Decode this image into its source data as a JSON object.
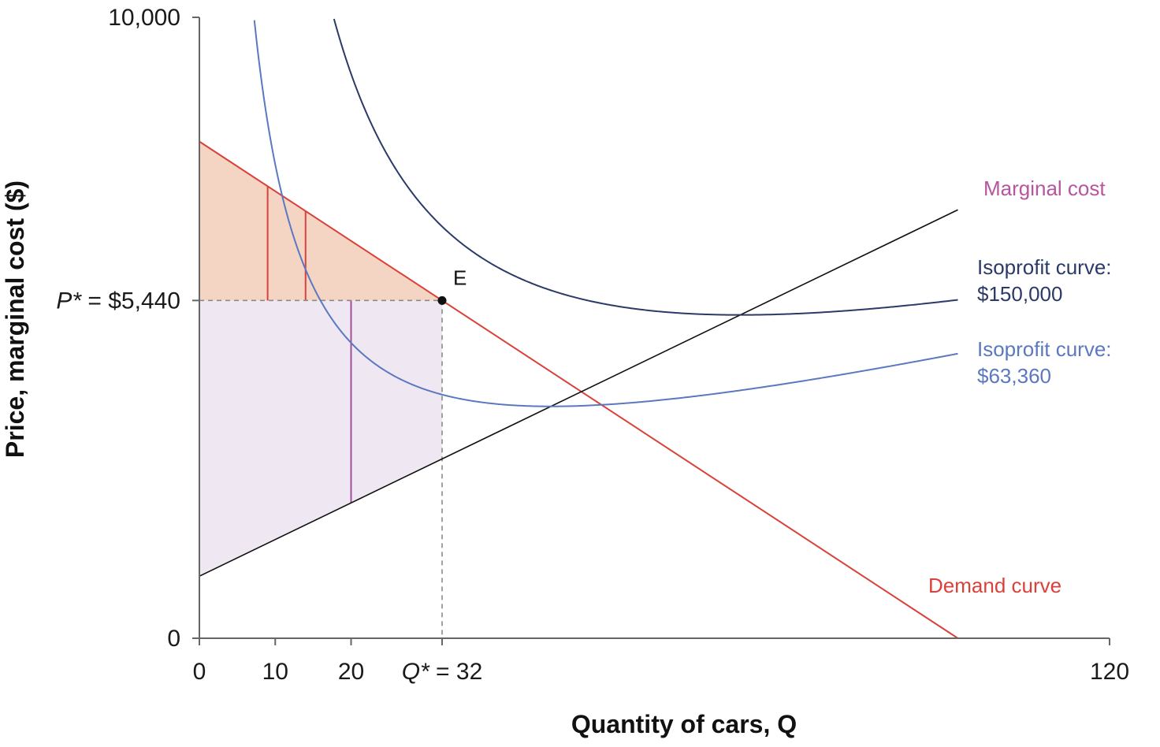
{
  "chart_data": {
    "type": "line",
    "title": "",
    "xlabel": "Quantity of cars, Q",
    "ylabel": "Price, marginal cost ($)",
    "xlim": [
      0,
      120
    ],
    "ylim": [
      0,
      10000
    ],
    "x_ticks": [
      {
        "value": 0,
        "label": "0"
      },
      {
        "value": 10,
        "label": "10"
      },
      {
        "value": 20,
        "label": "20"
      },
      {
        "value": 32,
        "label_prefix": "Q*",
        "label_suffix": " = 32"
      },
      {
        "value": 120,
        "label": "120"
      }
    ],
    "y_ticks": [
      {
        "value": 0,
        "label": "0"
      },
      {
        "value": 5440,
        "label_prefix": "P*",
        "label_suffix": " = $5,440"
      },
      {
        "value": 10000,
        "label": "10,000"
      }
    ],
    "series": [
      {
        "name": "Demand curve",
        "color": "#d9413a",
        "x": [
          0,
          100
        ],
        "y": [
          8000,
          0
        ]
      },
      {
        "name": "Marginal cost",
        "color": "#b5569e",
        "line_color": "#111111",
        "x": [
          0,
          100
        ],
        "y": [
          1000,
          6900
        ]
      },
      {
        "name": "Isoprofit curve: $150,000",
        "label_lines": [
          "Isoprofit curve:",
          "$150,000"
        ],
        "color": "#2b3a67",
        "profit": 150000
      },
      {
        "name": "Isoprofit curve: $63,360",
        "label_lines": [
          "Isoprofit curve:",
          "$63,360"
        ],
        "color": "#5b78c0",
        "profit": 63360
      }
    ],
    "equilibrium": {
      "label": "E",
      "x": 32,
      "y": 5440
    },
    "shaded_regions": [
      {
        "name": "consumer-surplus",
        "color": "#f4d4c3"
      },
      {
        "name": "producer-surplus",
        "color": "#efe7f1"
      }
    ],
    "surplus_bars": [
      {
        "x": 9,
        "region": "consumer-surplus",
        "color": "#d9413a"
      },
      {
        "x": 14,
        "region": "consumer-surplus",
        "color": "#d9413a"
      },
      {
        "x": 20,
        "region": "producer-surplus",
        "color": "#a0509a"
      }
    ],
    "grid": false
  }
}
